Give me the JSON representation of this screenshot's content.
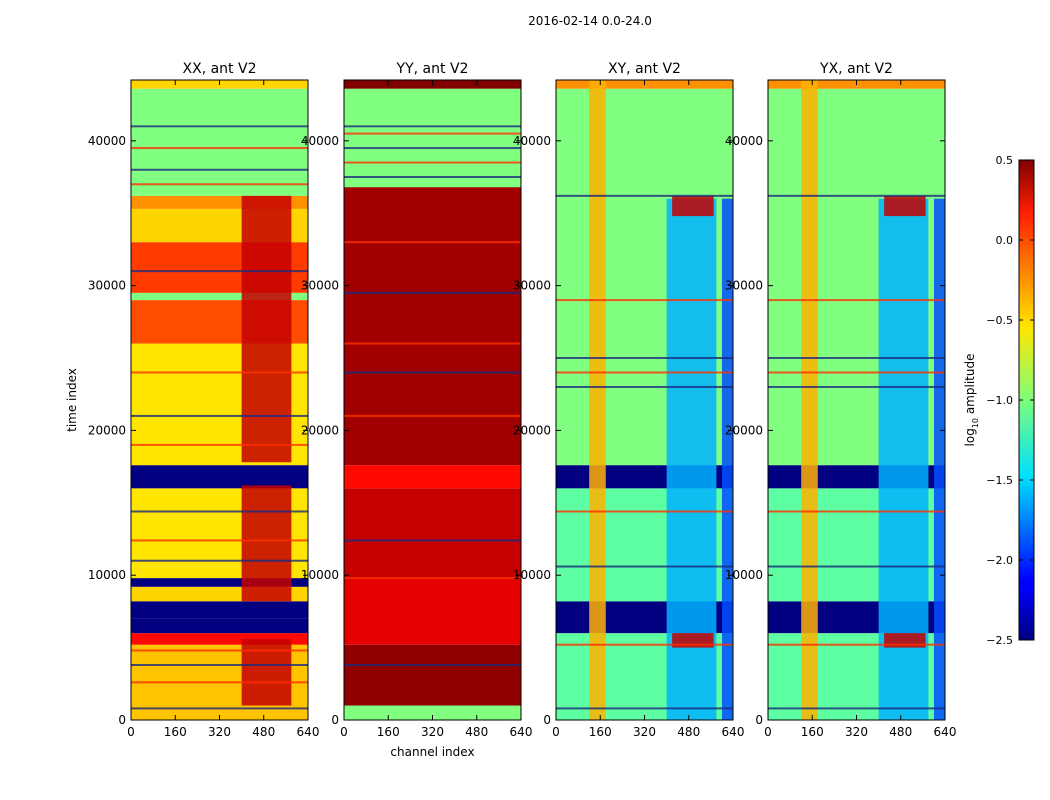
{
  "suptitle": "2016-02-14 0.0-24.0",
  "colorbar": {
    "label_main": "log",
    "label_sub": "10",
    "label_rest": " amplitude",
    "min": -2.5,
    "max": 0.5,
    "ticks": [
      0.5,
      0.0,
      -0.5,
      -1.0,
      -1.5,
      -2.0,
      -2.5
    ],
    "tick_labels": [
      "0.5",
      "0.0",
      "−0.5",
      "−1.0",
      "−1.5",
      "−2.0",
      "−2.5"
    ],
    "colormap": "jet"
  },
  "chart_data": [
    {
      "type": "heatmap",
      "title": "XX, ant V2",
      "xlabel": "",
      "ylabel": "time index",
      "xlim": [
        0,
        640
      ],
      "ylim": [
        0,
        44200
      ],
      "xticks": [
        0,
        160,
        320,
        480,
        640
      ],
      "yticks": [
        0,
        10000,
        20000,
        30000,
        40000
      ],
      "ytick_labels": [
        "0",
        "10000",
        "20000",
        "30000",
        "40000"
      ],
      "value_range": [
        -2.5,
        0.5
      ],
      "time_bands": [
        {
          "t0": 0,
          "t1": 5200,
          "value": -0.45
        },
        {
          "t0": 5200,
          "t1": 6000,
          "value": 0.1
        },
        {
          "t0": 6000,
          "t1": 7000,
          "value": -2.5
        },
        {
          "t0": 7000,
          "t1": 8200,
          "value": -2.5
        },
        {
          "t0": 8200,
          "t1": 9200,
          "value": -0.5
        },
        {
          "t0": 9200,
          "t1": 9800,
          "value": -2.5
        },
        {
          "t0": 9800,
          "t1": 16000,
          "value": -0.55
        },
        {
          "t0": 16000,
          "t1": 17600,
          "value": -2.5
        },
        {
          "t0": 17600,
          "t1": 26000,
          "value": -0.55
        },
        {
          "t0": 26000,
          "t1": 29000,
          "value": -0.1
        },
        {
          "t0": 29000,
          "t1": 29500,
          "value": -1.0
        },
        {
          "t0": 29500,
          "t1": 33000,
          "value": -0.05
        },
        {
          "t0": 33000,
          "t1": 35300,
          "value": -0.5
        },
        {
          "t0": 35300,
          "t1": 36200,
          "value": -0.3
        },
        {
          "t0": 36200,
          "t1": 43600,
          "value": -1.0
        },
        {
          "t0": 43600,
          "t1": 44200,
          "value": -0.5
        }
      ],
      "channel_bands": [
        {
          "c0": 400,
          "c1": 580,
          "value": 0.3,
          "times": [
            [
              1000,
              5600
            ],
            [
              8200,
              16200
            ],
            [
              17800,
              36200
            ]
          ]
        }
      ],
      "flag_lines": [
        800,
        2600,
        3800,
        4800,
        11000,
        12400,
        14400,
        19000,
        21000,
        24000,
        31000,
        37000,
        38000,
        39500,
        41000
      ]
    },
    {
      "type": "heatmap",
      "title": "YY, ant V2",
      "xlabel": "channel index",
      "ylabel": "",
      "xlim": [
        0,
        640
      ],
      "ylim": [
        0,
        44200
      ],
      "xticks": [
        0,
        160,
        320,
        480,
        640
      ],
      "yticks": [
        0,
        10000,
        20000,
        30000,
        40000
      ],
      "ytick_labels": [
        "0",
        "10000",
        "20000",
        "30000",
        "40000"
      ],
      "value_range": [
        -2.5,
        0.5
      ],
      "time_bands": [
        {
          "t0": 0,
          "t1": 1000,
          "value": -1.0
        },
        {
          "t0": 1000,
          "t1": 5200,
          "value": 0.45
        },
        {
          "t0": 5200,
          "t1": 9800,
          "value": 0.2
        },
        {
          "t0": 9800,
          "t1": 16000,
          "value": 0.3
        },
        {
          "t0": 16000,
          "t1": 17600,
          "value": 0.1
        },
        {
          "t0": 17600,
          "t1": 36800,
          "value": 0.4
        },
        {
          "t0": 36800,
          "t1": 43600,
          "value": -1.0
        },
        {
          "t0": 43600,
          "t1": 44200,
          "value": 0.5
        }
      ],
      "channel_bands": [],
      "flag_lines": [
        3800,
        9800,
        12400,
        21000,
        24000,
        26000,
        29500,
        33000,
        37500,
        38500,
        39500,
        40500,
        41000
      ]
    },
    {
      "type": "heatmap",
      "title": "XY, ant V2",
      "xlabel": "",
      "ylabel": "",
      "xlim": [
        0,
        640
      ],
      "ylim": [
        0,
        44200
      ],
      "xticks": [
        0,
        160,
        320,
        480,
        640
      ],
      "yticks": [
        0,
        10000,
        20000,
        30000,
        40000
      ],
      "ytick_labels": [
        "0",
        "10000",
        "20000",
        "30000",
        "40000"
      ],
      "value_range": [
        -2.5,
        0.5
      ],
      "time_bands": [
        {
          "t0": 0,
          "t1": 6000,
          "value": -1.1
        },
        {
          "t0": 6000,
          "t1": 8200,
          "value": -2.5
        },
        {
          "t0": 8200,
          "t1": 16000,
          "value": -1.1
        },
        {
          "t0": 16000,
          "t1": 17600,
          "value": -2.5
        },
        {
          "t0": 17600,
          "t1": 43600,
          "value": -1.0
        },
        {
          "t0": 43600,
          "t1": 44200,
          "value": -0.3
        }
      ],
      "channel_bands": [
        {
          "c0": 120,
          "c1": 180,
          "value": -0.4,
          "times": [
            [
              0,
              44200
            ]
          ]
        },
        {
          "c0": 400,
          "c1": 580,
          "value": -1.6,
          "times": [
            [
              0,
              36000
            ]
          ]
        },
        {
          "c0": 600,
          "c1": 640,
          "value": -1.9,
          "times": [
            [
              0,
              36000
            ]
          ]
        },
        {
          "c0": 420,
          "c1": 570,
          "value": 0.3,
          "times": [
            [
              5000,
              6000
            ],
            [
              34800,
              36200
            ]
          ]
        }
      ],
      "flag_lines": [
        800,
        5200,
        10600,
        14400,
        23000,
        24000,
        25000,
        29000,
        36200
      ]
    },
    {
      "type": "heatmap",
      "title": "YX, ant V2",
      "xlabel": "",
      "ylabel": "",
      "xlim": [
        0,
        640
      ],
      "ylim": [
        0,
        44200
      ],
      "xticks": [
        0,
        160,
        320,
        480,
        640
      ],
      "yticks": [
        0,
        10000,
        20000,
        30000,
        40000
      ],
      "ytick_labels": [
        "0",
        "10000",
        "20000",
        "30000",
        "40000"
      ],
      "value_range": [
        -2.5,
        0.5
      ],
      "time_bands": [
        {
          "t0": 0,
          "t1": 6000,
          "value": -1.1
        },
        {
          "t0": 6000,
          "t1": 8200,
          "value": -2.5
        },
        {
          "t0": 8200,
          "t1": 16000,
          "value": -1.1
        },
        {
          "t0": 16000,
          "t1": 17600,
          "value": -2.5
        },
        {
          "t0": 17600,
          "t1": 43600,
          "value": -1.0
        },
        {
          "t0": 43600,
          "t1": 44200,
          "value": -0.3
        }
      ],
      "channel_bands": [
        {
          "c0": 120,
          "c1": 180,
          "value": -0.4,
          "times": [
            [
              0,
              44200
            ]
          ]
        },
        {
          "c0": 400,
          "c1": 580,
          "value": -1.6,
          "times": [
            [
              0,
              36000
            ]
          ]
        },
        {
          "c0": 600,
          "c1": 640,
          "value": -1.9,
          "times": [
            [
              0,
              36000
            ]
          ]
        },
        {
          "c0": 420,
          "c1": 570,
          "value": 0.3,
          "times": [
            [
              5000,
              6000
            ],
            [
              34800,
              36200
            ]
          ]
        }
      ],
      "flag_lines": [
        800,
        5200,
        10600,
        14400,
        23000,
        24000,
        25000,
        29000,
        36200
      ]
    }
  ]
}
